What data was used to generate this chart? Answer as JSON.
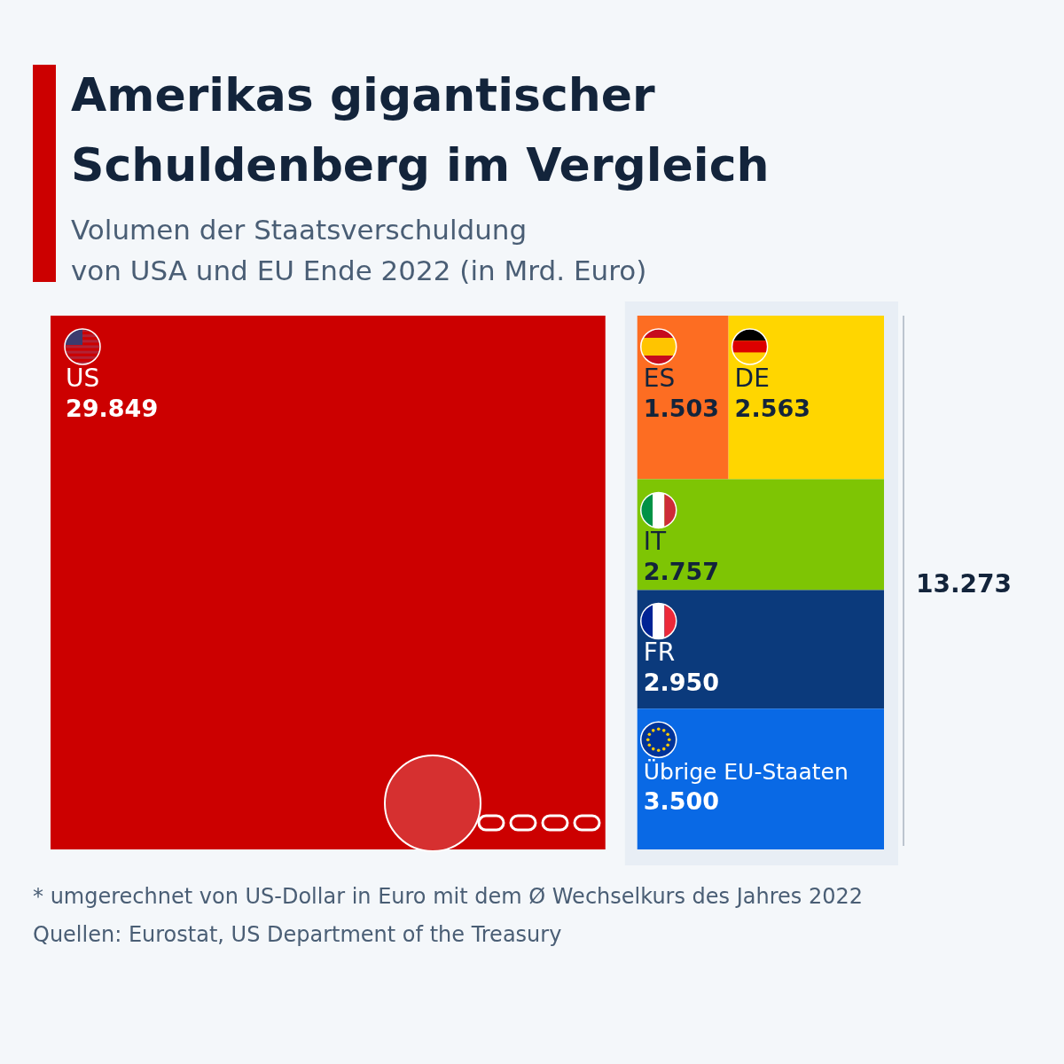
{
  "chart_data": {
    "type": "other",
    "title": "Amerikas gigantischer Schuldenberg im Vergleich",
    "subtitle": "Volumen der Staatsverschuldung von USA und EU Ende 2022 (in Mrd. Euro)",
    "categories": [
      "US",
      "ES",
      "DE",
      "IT",
      "FR",
      "Übrige EU-Staaten"
    ],
    "values": [
      29849,
      1503,
      2563,
      2757,
      2950,
      3500
    ],
    "value_labels": [
      "29.849",
      "1.503",
      "2.563",
      "2.757",
      "2.950",
      "3.500"
    ],
    "colors": [
      "#cc0000",
      "#fd6d22",
      "#ffd600",
      "#7ec504",
      "#0b3a7c",
      "#0969e5"
    ],
    "annotations": [
      {
        "text": "13.273"
      },
      {
        "text": "* umgerechnet von US-Dollar in Euro mit dem Ø Wechselkurs des Jahres 2022"
      },
      {
        "text": "Quellen: Eurostat, US Department of the Treasury"
      }
    ]
  }
}
